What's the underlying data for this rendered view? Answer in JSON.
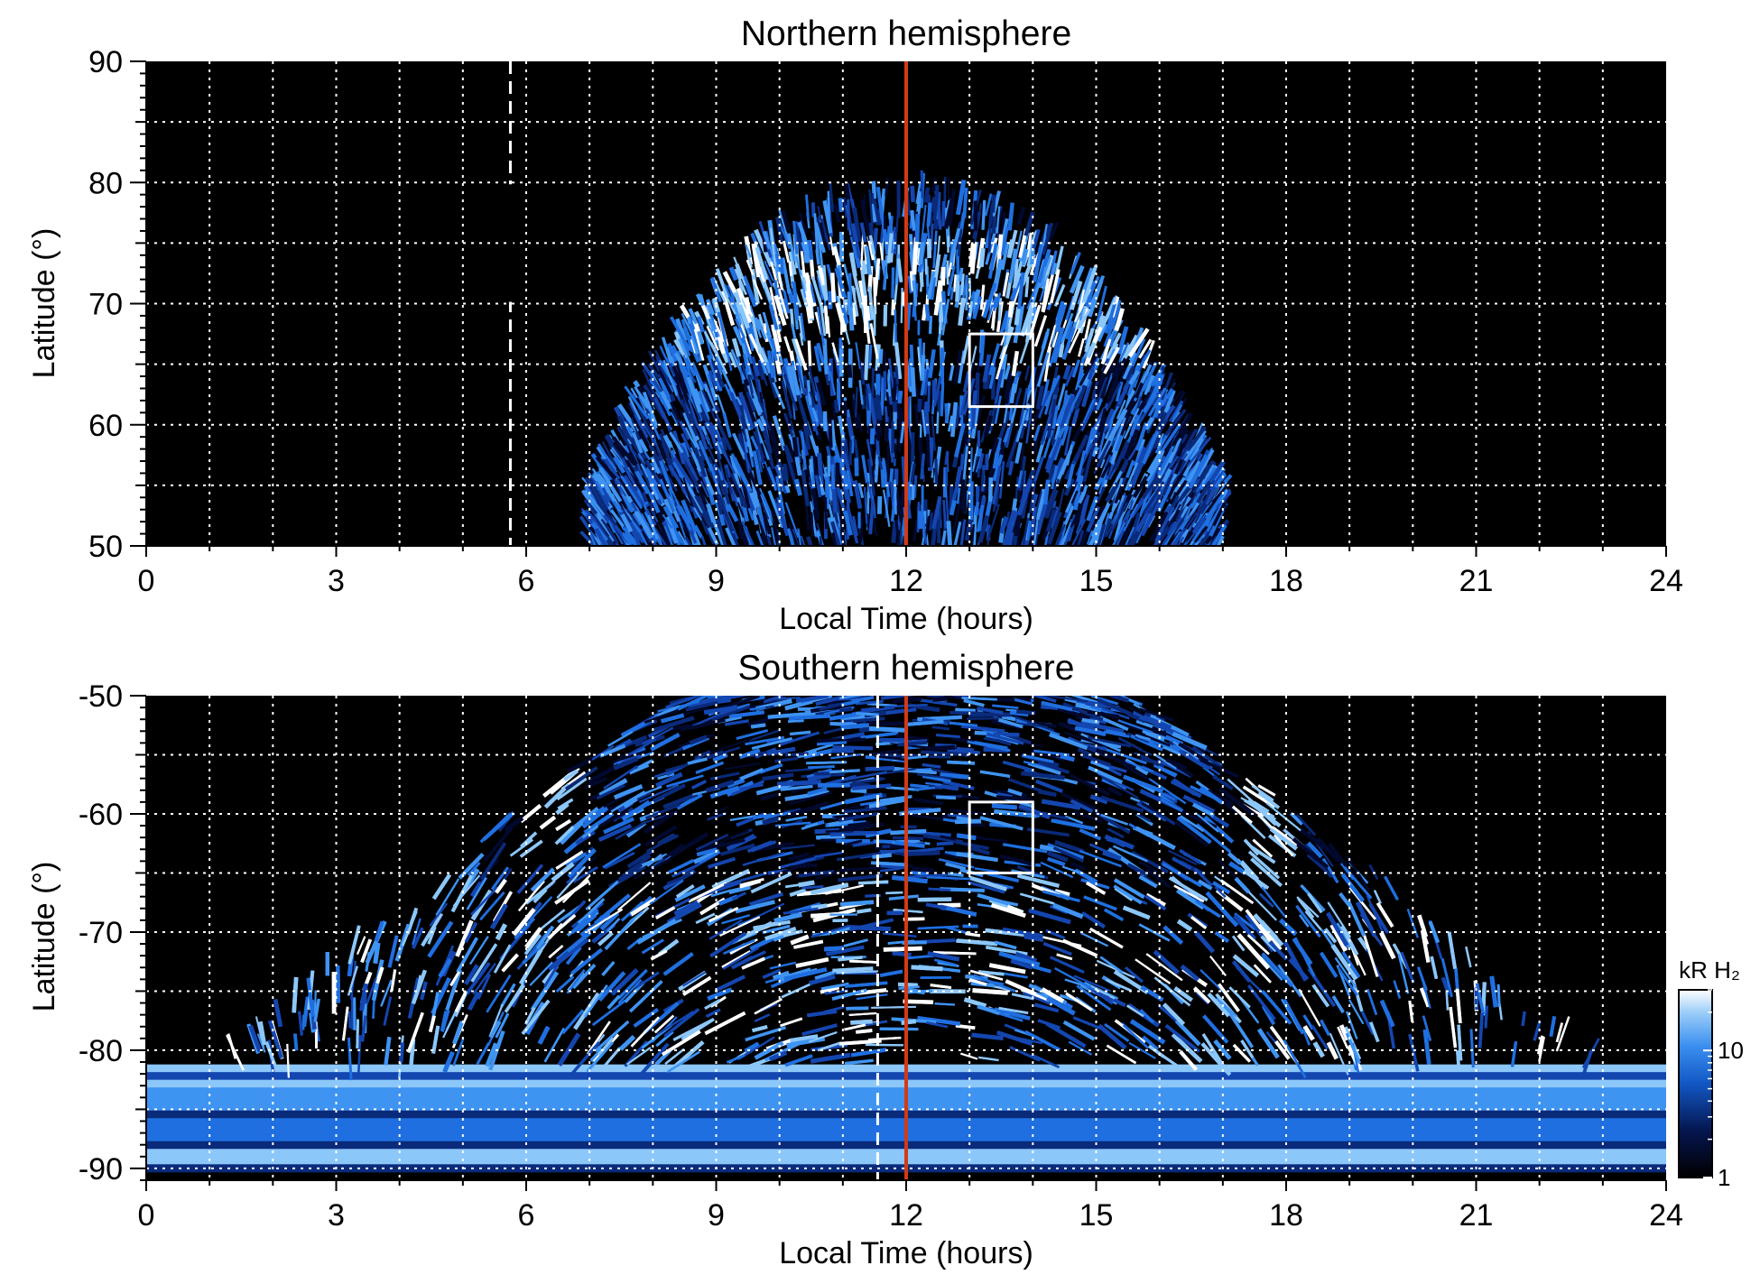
{
  "chart_data": [
    {
      "type": "heatmap",
      "title": "Northern hemisphere",
      "xlabel": "Local Time (hours)",
      "ylabel": "Latitude (°)",
      "xlim": [
        0,
        24
      ],
      "ylim": [
        50,
        90
      ],
      "x_ticks": [
        "0",
        "3",
        "6",
        "9",
        "12",
        "15",
        "18",
        "21",
        "24"
      ],
      "y_ticks": [
        "50",
        "60",
        "70",
        "80",
        "90"
      ],
      "x_minor_step": 1,
      "y_minor_step": 5,
      "grid": true,
      "noon_line_lt": 12,
      "noon_line_color": "#d23a16",
      "dashed_line_lt": 5.75,
      "dashed_line_gaps_lat": [
        [
          70,
          80
        ]
      ],
      "box": {
        "lt": [
          13,
          14
        ],
        "lat": [
          61.5,
          67.5
        ]
      },
      "emission_region": {
        "lt_center": 12,
        "lt_halfwidth_at_50": 5,
        "lat_max": 80,
        "oval_lat": 70,
        "dark_gap_lat": [
          66,
          68
        ]
      }
    },
    {
      "type": "heatmap",
      "title": "Southern hemisphere",
      "xlabel": "Local Time (hours)",
      "ylabel": "Latitude (°)",
      "xlim": [
        0,
        24
      ],
      "ylim": [
        -91,
        -50
      ],
      "x_ticks": [
        "0",
        "3",
        "6",
        "9",
        "12",
        "15",
        "18",
        "21",
        "24"
      ],
      "y_ticks": [
        "-90",
        "-80",
        "-70",
        "-60",
        "-50"
      ],
      "x_minor_step": 1,
      "y_minor_step": 5,
      "grid": true,
      "noon_line_lt": 12,
      "noon_line_color": "#d23a16",
      "dashed_line_lt": 11.55,
      "box": {
        "lt": [
          13,
          14
        ],
        "lat": [
          -65,
          -59
        ]
      },
      "emission_region": {
        "lt_min": 5,
        "lt_max": 19,
        "bright_bands_lt": [
          6.3,
          17.7
        ],
        "polar_cap_lat": -81
      }
    }
  ],
  "colorbar": {
    "label": "kR H₂",
    "scale": "log",
    "range": [
      1,
      30
    ],
    "tick_labels": [
      "1",
      "10"
    ],
    "colors": [
      "#000000",
      "#05164f",
      "#1257c4",
      "#3a8ff0",
      "#9ccdf8",
      "#ffffff"
    ]
  },
  "colors": {
    "background": "#000000",
    "grid": "#ffffff",
    "aurora_dark": "#0a2a7a",
    "aurora_mid": "#1f6fe0",
    "aurora_bright": "#ffffff"
  }
}
